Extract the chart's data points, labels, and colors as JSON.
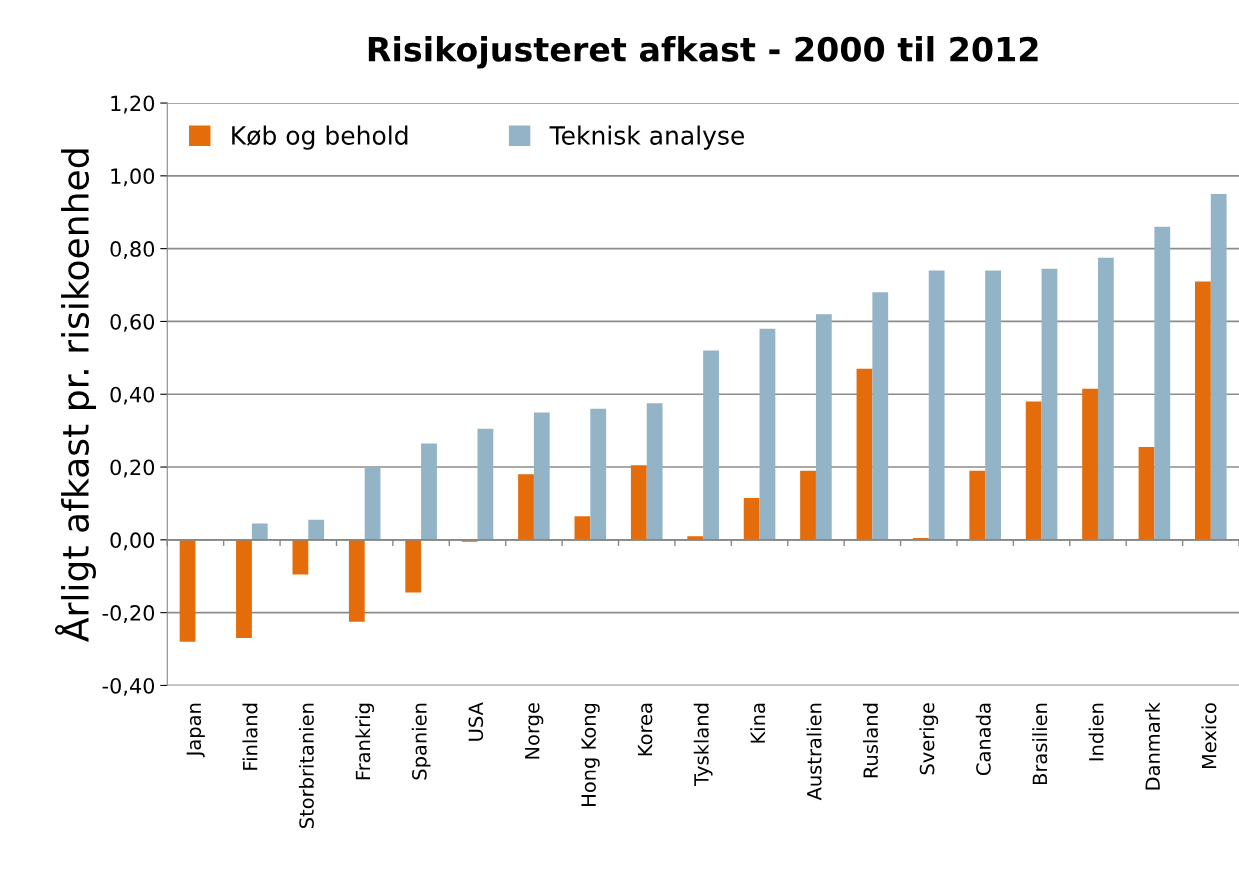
{
  "chart_data": {
    "type": "bar",
    "title": "Risikojusteret afkast - 2000 til 2012",
    "ylabel": "Årligt afkast pr. risikoenhed",
    "categories": [
      "Japan",
      "Finland",
      "Storbritanien",
      "Frankrig",
      "Spanien",
      "USA",
      "Norge",
      "Hong Kong",
      "Korea",
      "Tyskland",
      "Kina",
      "Australien",
      "Rusland",
      "Sverige",
      "Canada",
      "Brasilien",
      "Indien",
      "Danmark",
      "Mexico"
    ],
    "series": [
      {
        "name": "Køb og behold",
        "color": "#e46c0a",
        "values": [
          -0.28,
          -0.27,
          -0.095,
          -0.225,
          -0.145,
          -0.005,
          0.18,
          0.065,
          0.205,
          0.01,
          0.115,
          0.19,
          0.47,
          0.005,
          0.19,
          0.38,
          0.415,
          0.255,
          0.71
        ]
      },
      {
        "name": "Teknisk analyse",
        "color": "#93b3c6",
        "values": [
          null,
          0.045,
          0.055,
          0.2,
          0.265,
          0.305,
          0.35,
          0.36,
          0.375,
          0.52,
          0.58,
          0.62,
          0.68,
          0.74,
          0.74,
          0.745,
          0.775,
          0.86,
          0.95
        ]
      }
    ],
    "ylim": [
      -0.4,
      1.2
    ],
    "yticks": [
      {
        "value": -0.4,
        "label": "-0,40"
      },
      {
        "value": -0.2,
        "label": "-0,20"
      },
      {
        "value": 0,
        "label": "0,00"
      },
      {
        "value": 0.2,
        "label": "0,20"
      },
      {
        "value": 0.4,
        "label": "0,40"
      },
      {
        "value": 0.6,
        "label": "0,60"
      },
      {
        "value": 0.8,
        "label": "0,80"
      },
      {
        "value": 1.0,
        "label": "1,00"
      },
      {
        "value": 1.2,
        "label": "1,20"
      }
    ],
    "grid": "y",
    "legend": "top left"
  }
}
